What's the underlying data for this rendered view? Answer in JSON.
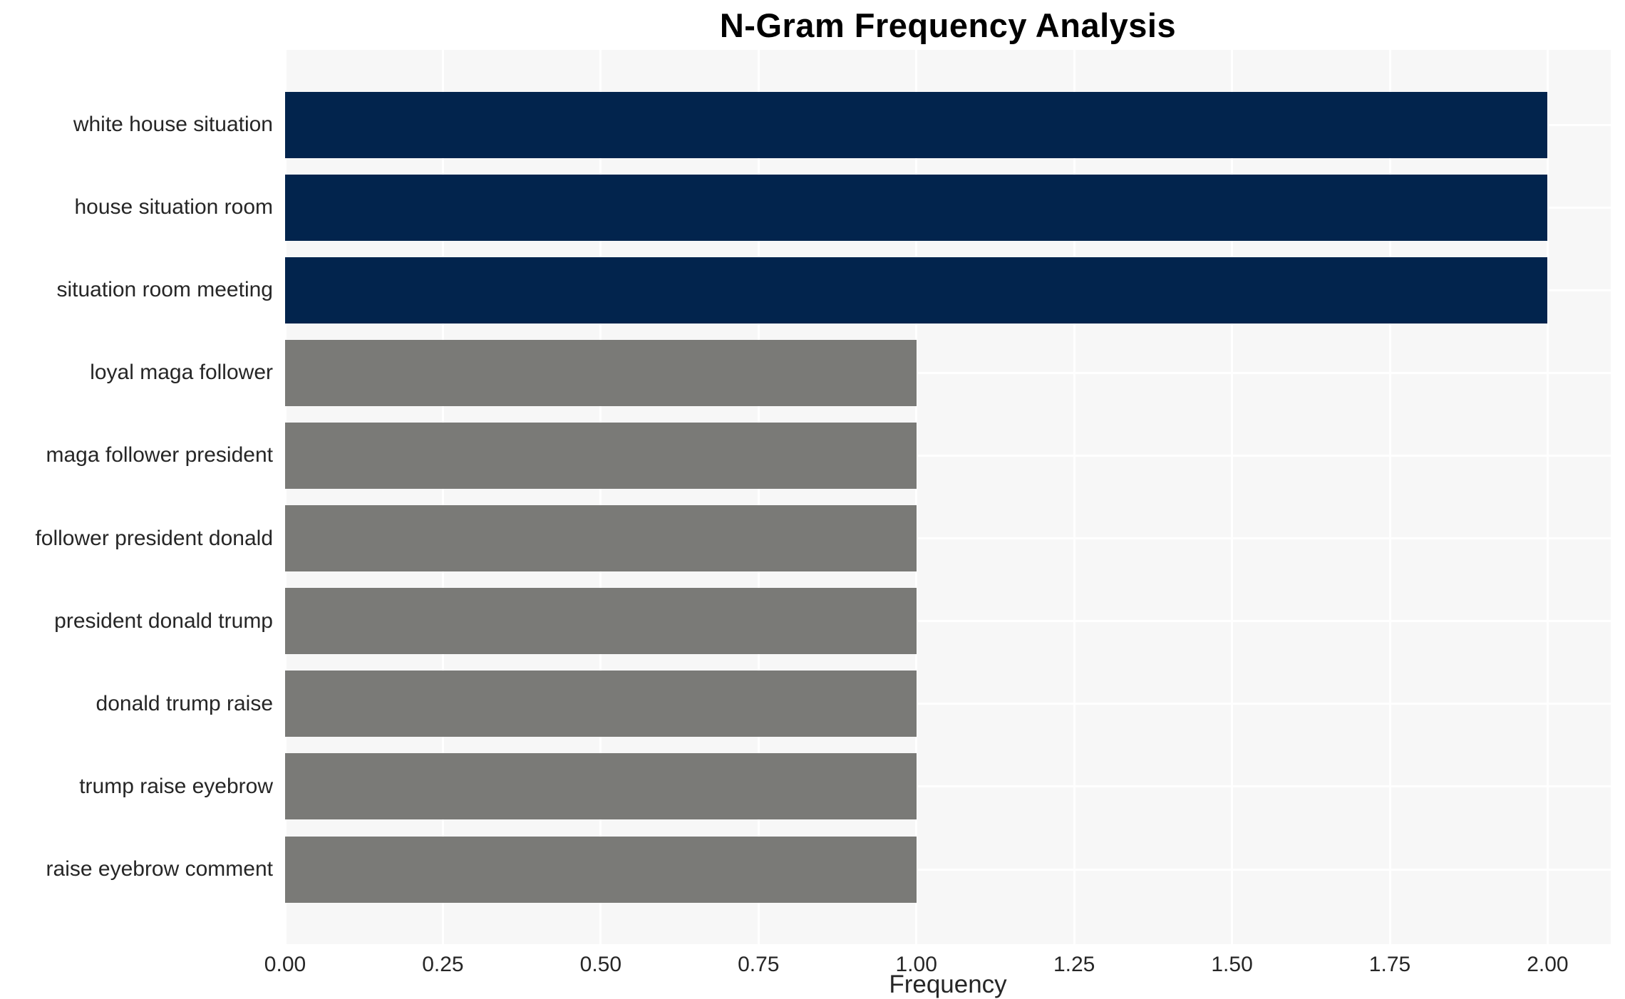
{
  "chart_data": {
    "type": "bar",
    "orientation": "horizontal",
    "title": "N-Gram Frequency Analysis",
    "xlabel": "Frequency",
    "ylabel": "",
    "categories": [
      "white house situation",
      "house situation room",
      "situation room meeting",
      "loyal maga follower",
      "maga follower president",
      "follower president donald",
      "president donald trump",
      "donald trump raise",
      "trump raise eyebrow",
      "raise eyebrow comment"
    ],
    "values": [
      2.0,
      2.0,
      2.0,
      1.0,
      1.0,
      1.0,
      1.0,
      1.0,
      1.0,
      1.0
    ],
    "bar_colors": [
      "#02244d",
      "#02244d",
      "#02244d",
      "#7a7a77",
      "#7a7a77",
      "#7a7a77",
      "#7a7a77",
      "#7a7a77",
      "#7a7a77",
      "#7a7a77"
    ],
    "xlim": [
      0,
      2.1
    ],
    "xticks": [
      {
        "value": 0.0,
        "label": "0.00"
      },
      {
        "value": 0.25,
        "label": "0.25"
      },
      {
        "value": 0.5,
        "label": "0.50"
      },
      {
        "value": 0.75,
        "label": "0.75"
      },
      {
        "value": 1.0,
        "label": "1.00"
      },
      {
        "value": 1.25,
        "label": "1.25"
      },
      {
        "value": 1.5,
        "label": "1.50"
      },
      {
        "value": 1.75,
        "label": "1.75"
      },
      {
        "value": 2.0,
        "label": "2.00"
      }
    ],
    "grid": true,
    "legend": false,
    "colors": {
      "high_bar": "#02244d",
      "low_bar": "#7a7a77",
      "plot_background": "#f7f7f7",
      "gridline": "#ffffff",
      "tick_text": "#262626",
      "title_text": "#000000"
    }
  }
}
